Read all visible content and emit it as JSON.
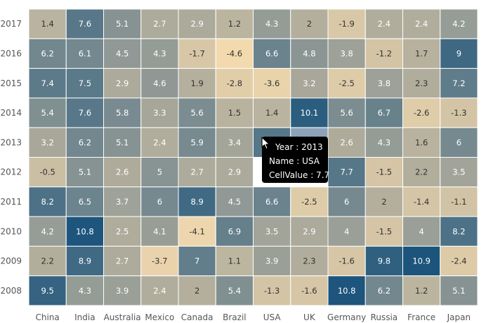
{
  "chart_data": {
    "type": "heatmap",
    "x_categories": [
      "China",
      "India",
      "Australia",
      "Mexico",
      "Canada",
      "Brazil",
      "USA",
      "UK",
      "Germany",
      "Russia",
      "France",
      "Japan"
    ],
    "y_categories": [
      "2017",
      "2016",
      "2015",
      "2014",
      "2013",
      "2012",
      "2011",
      "2010",
      "2009",
      "2008"
    ],
    "values": [
      [
        1.4,
        7.6,
        5.1,
        2.7,
        2.9,
        1.2,
        4.3,
        2,
        -1.9,
        2.4,
        2.4,
        4.2
      ],
      [
        6.2,
        6.1,
        4.5,
        4.3,
        -1.7,
        -4.6,
        6.6,
        4.8,
        3.8,
        -1.2,
        1.7,
        9
      ],
      [
        7.4,
        7.5,
        2.9,
        4.6,
        1.9,
        -2.8,
        -3.6,
        3.2,
        -2.5,
        3.8,
        2.3,
        7.2
      ],
      [
        5.4,
        7.6,
        5.8,
        3.3,
        5.6,
        1.5,
        1.4,
        10.1,
        5.6,
        6.7,
        -2.6,
        -1.3
      ],
      [
        3.2,
        6.2,
        5.1,
        2.4,
        5.9,
        3.4,
        7.7,
        null,
        2.6,
        4.3,
        1.6,
        6
      ],
      [
        -0.5,
        5.1,
        2.6,
        5,
        2.7,
        2.9,
        null,
        null,
        7.7,
        -1.5,
        2.2,
        3.5
      ],
      [
        8.2,
        6.5,
        3.7,
        6,
        8.9,
        4.5,
        6.6,
        -2.5,
        6,
        2,
        -1.4,
        -1.1
      ],
      [
        4.2,
        10.8,
        2.5,
        4.1,
        -4.1,
        6.9,
        3.5,
        2.9,
        4,
        -1.5,
        4,
        8.2
      ],
      [
        2.2,
        8.9,
        2.7,
        -3.7,
        7,
        1.1,
        3.9,
        2.3,
        -1.6,
        9.8,
        10.9,
        -2.4
      ],
      [
        9.5,
        4.3,
        3.9,
        2.4,
        2,
        5.4,
        -1.3,
        -1.6,
        10.8,
        6.2,
        1.2,
        5.1
      ]
    ],
    "color_scale": {
      "low": "#F2D9AE",
      "mid": "#A9A89A",
      "high": "#1C547C"
    },
    "highlight_color": "#8DA3B9"
  },
  "tooltip": {
    "year": "Year : 2013",
    "name": "Name : USA",
    "value": "CellValue : 7.7"
  }
}
